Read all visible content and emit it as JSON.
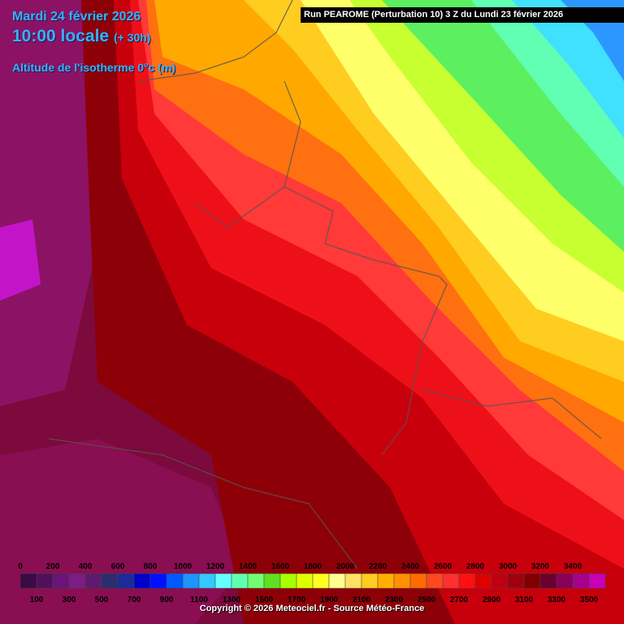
{
  "header": {
    "date": "Mardi 24 février 2026",
    "time": "10:00 locale",
    "lead": "(+ 30h)",
    "field": "Altitude de l'isotherme 0°c (m)"
  },
  "run": "Run PEAROME (Perturbation 10) 3 Z du Lundi 23 février 2026",
  "legend": {
    "ticks": [
      0,
      100,
      200,
      300,
      400,
      500,
      600,
      700,
      800,
      900,
      1000,
      1100,
      1200,
      1300,
      1400,
      1500,
      1600,
      1700,
      1800,
      1900,
      2000,
      2100,
      2200,
      2300,
      2400,
      2500,
      2600,
      2700,
      2800,
      2900,
      3000,
      3100,
      3200,
      3300,
      3400,
      3500
    ],
    "colors": [
      "#3c0a44",
      "#50105e",
      "#6a1478",
      "#7c1c84",
      "#5e1a6e",
      "#2c2c6e",
      "#1c2a9a",
      "#0000c8",
      "#0010ff",
      "#0058ff",
      "#1e94ff",
      "#34c8ff",
      "#64ffff",
      "#60ffb0",
      "#70ff70",
      "#60e020",
      "#a8ff00",
      "#e0ff00",
      "#ffff20",
      "#ffff90",
      "#ffe060",
      "#ffcc20",
      "#ffb000",
      "#ff9000",
      "#ff6a00",
      "#ff4820",
      "#ff3030",
      "#ff1010",
      "#e00000",
      "#c00010",
      "#a00010",
      "#800000",
      "#6a0030",
      "#880058",
      "#a80088",
      "#c800b8"
    ]
  },
  "copyright": "Copyright © 2026 Meteociel.fr - Source Météo-France"
}
